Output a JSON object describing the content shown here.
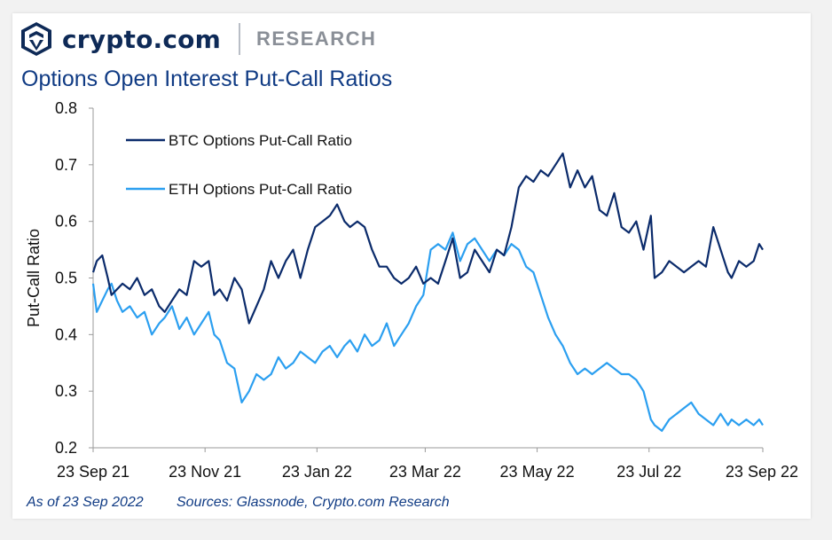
{
  "brand": {
    "name": "crypto.com",
    "section": "RESEARCH",
    "logo_icon": "crypto-com-lion-shield-icon"
  },
  "footer": {
    "as_of": "As of 23 Sep 2022",
    "sources": "Sources: Glassnode, Crypto.com Research"
  },
  "colors": {
    "brand_navy": "#0e2a57",
    "title_blue": "#103b84",
    "btc_line": "#0b2b6b",
    "eth_line": "#2b9ff0"
  },
  "chart_data": {
    "type": "line",
    "title": "Options Open Interest Put-Call Ratios",
    "xlabel": "",
    "ylabel": "Put-Call Ratio",
    "ylim": [
      0.2,
      0.8
    ],
    "yticks": [
      0.2,
      0.3,
      0.4,
      0.5,
      0.6,
      0.7,
      0.8
    ],
    "ytick_labels": [
      "0.2",
      "0.3",
      "0.4",
      "0.5",
      "0.6",
      "0.7",
      "0.8"
    ],
    "xlim": [
      "2021-09-23",
      "2022-09-23"
    ],
    "xticks": [
      "2021-09-23",
      "2021-11-23",
      "2022-01-23",
      "2022-03-23",
      "2022-05-23",
      "2022-07-23",
      "2022-09-23"
    ],
    "xtick_labels": [
      "23 Sep 21",
      "23 Nov 21",
      "23 Jan 22",
      "23 Mar 22",
      "23 May 22",
      "23 Jul 22",
      "23 Sep 22"
    ],
    "grid": false,
    "legend": "top-left",
    "series": [
      {
        "name": "BTC Options Put-Call Ratio",
        "x": [
          "2021-09-23",
          "2021-09-25",
          "2021-09-28",
          "2021-10-01",
          "2021-10-03",
          "2021-10-06",
          "2021-10-09",
          "2021-10-13",
          "2021-10-17",
          "2021-10-21",
          "2021-10-25",
          "2021-10-29",
          "2021-11-01",
          "2021-11-05",
          "2021-11-09",
          "2021-11-13",
          "2021-11-17",
          "2021-11-21",
          "2021-11-25",
          "2021-11-28",
          "2021-12-01",
          "2021-12-05",
          "2021-12-09",
          "2021-12-13",
          "2021-12-17",
          "2021-12-21",
          "2021-12-25",
          "2021-12-29",
          "2022-01-02",
          "2022-01-06",
          "2022-01-10",
          "2022-01-14",
          "2022-01-18",
          "2022-01-22",
          "2022-01-26",
          "2022-01-30",
          "2022-02-03",
          "2022-02-07",
          "2022-02-10",
          "2022-02-14",
          "2022-02-18",
          "2022-02-22",
          "2022-02-26",
          "2022-03-02",
          "2022-03-06",
          "2022-03-10",
          "2022-03-14",
          "2022-03-18",
          "2022-03-22",
          "2022-03-26",
          "2022-03-30",
          "2022-04-03",
          "2022-04-07",
          "2022-04-11",
          "2022-04-15",
          "2022-04-19",
          "2022-04-23",
          "2022-04-27",
          "2022-05-01",
          "2022-05-05",
          "2022-05-09",
          "2022-05-13",
          "2022-05-17",
          "2022-05-21",
          "2022-05-25",
          "2022-05-29",
          "2022-06-02",
          "2022-06-06",
          "2022-06-10",
          "2022-06-14",
          "2022-06-18",
          "2022-06-22",
          "2022-06-26",
          "2022-06-30",
          "2022-07-04",
          "2022-07-08",
          "2022-07-12",
          "2022-07-16",
          "2022-07-20",
          "2022-07-24",
          "2022-07-26",
          "2022-07-30",
          "2022-08-03",
          "2022-08-07",
          "2022-08-11",
          "2022-08-15",
          "2022-08-19",
          "2022-08-23",
          "2022-08-27",
          "2022-08-31",
          "2022-09-04",
          "2022-09-06",
          "2022-09-10",
          "2022-09-14",
          "2022-09-18",
          "2022-09-21",
          "2022-09-23"
        ],
        "values": [
          0.51,
          0.53,
          0.54,
          0.5,
          0.47,
          0.48,
          0.49,
          0.48,
          0.5,
          0.47,
          0.48,
          0.45,
          0.44,
          0.46,
          0.48,
          0.47,
          0.53,
          0.52,
          0.53,
          0.47,
          0.48,
          0.46,
          0.5,
          0.48,
          0.42,
          0.45,
          0.48,
          0.53,
          0.5,
          0.53,
          0.55,
          0.5,
          0.55,
          0.59,
          0.6,
          0.61,
          0.63,
          0.6,
          0.59,
          0.6,
          0.59,
          0.55,
          0.52,
          0.52,
          0.5,
          0.49,
          0.5,
          0.52,
          0.49,
          0.5,
          0.49,
          0.53,
          0.57,
          0.5,
          0.51,
          0.55,
          0.53,
          0.51,
          0.55,
          0.54,
          0.59,
          0.66,
          0.68,
          0.67,
          0.69,
          0.68,
          0.7,
          0.72,
          0.66,
          0.69,
          0.66,
          0.68,
          0.62,
          0.61,
          0.65,
          0.59,
          0.58,
          0.6,
          0.55,
          0.61,
          0.5,
          0.51,
          0.53,
          0.52,
          0.51,
          0.52,
          0.53,
          0.52,
          0.59,
          0.55,
          0.51,
          0.5,
          0.53,
          0.52,
          0.53,
          0.56,
          0.55
        ]
      },
      {
        "name": "ETH Options Put-Call Ratio",
        "x": [
          "2021-09-23",
          "2021-09-25",
          "2021-09-28",
          "2021-10-01",
          "2021-10-03",
          "2021-10-06",
          "2021-10-09",
          "2021-10-13",
          "2021-10-17",
          "2021-10-21",
          "2021-10-25",
          "2021-10-29",
          "2021-11-01",
          "2021-11-05",
          "2021-11-09",
          "2021-11-13",
          "2021-11-17",
          "2021-11-21",
          "2021-11-25",
          "2021-11-28",
          "2021-12-01",
          "2021-12-05",
          "2021-12-09",
          "2021-12-13",
          "2021-12-17",
          "2021-12-21",
          "2021-12-25",
          "2021-12-29",
          "2022-01-02",
          "2022-01-06",
          "2022-01-10",
          "2022-01-14",
          "2022-01-18",
          "2022-01-22",
          "2022-01-26",
          "2022-01-30",
          "2022-02-03",
          "2022-02-07",
          "2022-02-10",
          "2022-02-14",
          "2022-02-18",
          "2022-02-22",
          "2022-02-26",
          "2022-03-02",
          "2022-03-06",
          "2022-03-10",
          "2022-03-14",
          "2022-03-18",
          "2022-03-22",
          "2022-03-26",
          "2022-03-30",
          "2022-04-03",
          "2022-04-07",
          "2022-04-11",
          "2022-04-15",
          "2022-04-19",
          "2022-04-23",
          "2022-04-27",
          "2022-05-01",
          "2022-05-05",
          "2022-05-09",
          "2022-05-13",
          "2022-05-17",
          "2022-05-21",
          "2022-05-25",
          "2022-05-29",
          "2022-06-02",
          "2022-06-06",
          "2022-06-10",
          "2022-06-14",
          "2022-06-18",
          "2022-06-22",
          "2022-06-26",
          "2022-06-30",
          "2022-07-04",
          "2022-07-08",
          "2022-07-12",
          "2022-07-16",
          "2022-07-20",
          "2022-07-24",
          "2022-07-26",
          "2022-07-30",
          "2022-08-03",
          "2022-08-07",
          "2022-08-11",
          "2022-08-15",
          "2022-08-19",
          "2022-08-23",
          "2022-08-27",
          "2022-08-31",
          "2022-09-04",
          "2022-09-06",
          "2022-09-10",
          "2022-09-14",
          "2022-09-18",
          "2022-09-21",
          "2022-09-23"
        ],
        "values": [
          0.49,
          0.44,
          0.46,
          0.48,
          0.49,
          0.46,
          0.44,
          0.45,
          0.43,
          0.44,
          0.4,
          0.42,
          0.43,
          0.45,
          0.41,
          0.43,
          0.4,
          0.42,
          0.44,
          0.4,
          0.39,
          0.35,
          0.34,
          0.28,
          0.3,
          0.33,
          0.32,
          0.33,
          0.36,
          0.34,
          0.35,
          0.37,
          0.36,
          0.35,
          0.37,
          0.38,
          0.36,
          0.38,
          0.39,
          0.37,
          0.4,
          0.38,
          0.39,
          0.42,
          0.38,
          0.4,
          0.42,
          0.45,
          0.47,
          0.55,
          0.56,
          0.55,
          0.58,
          0.53,
          0.56,
          0.57,
          0.55,
          0.53,
          0.55,
          0.54,
          0.56,
          0.55,
          0.52,
          0.51,
          0.47,
          0.43,
          0.4,
          0.38,
          0.35,
          0.33,
          0.34,
          0.33,
          0.34,
          0.35,
          0.34,
          0.33,
          0.33,
          0.32,
          0.3,
          0.25,
          0.24,
          0.23,
          0.25,
          0.26,
          0.27,
          0.28,
          0.26,
          0.25,
          0.24,
          0.26,
          0.24,
          0.25,
          0.24,
          0.25,
          0.24,
          0.25,
          0.24
        ]
      }
    ]
  }
}
